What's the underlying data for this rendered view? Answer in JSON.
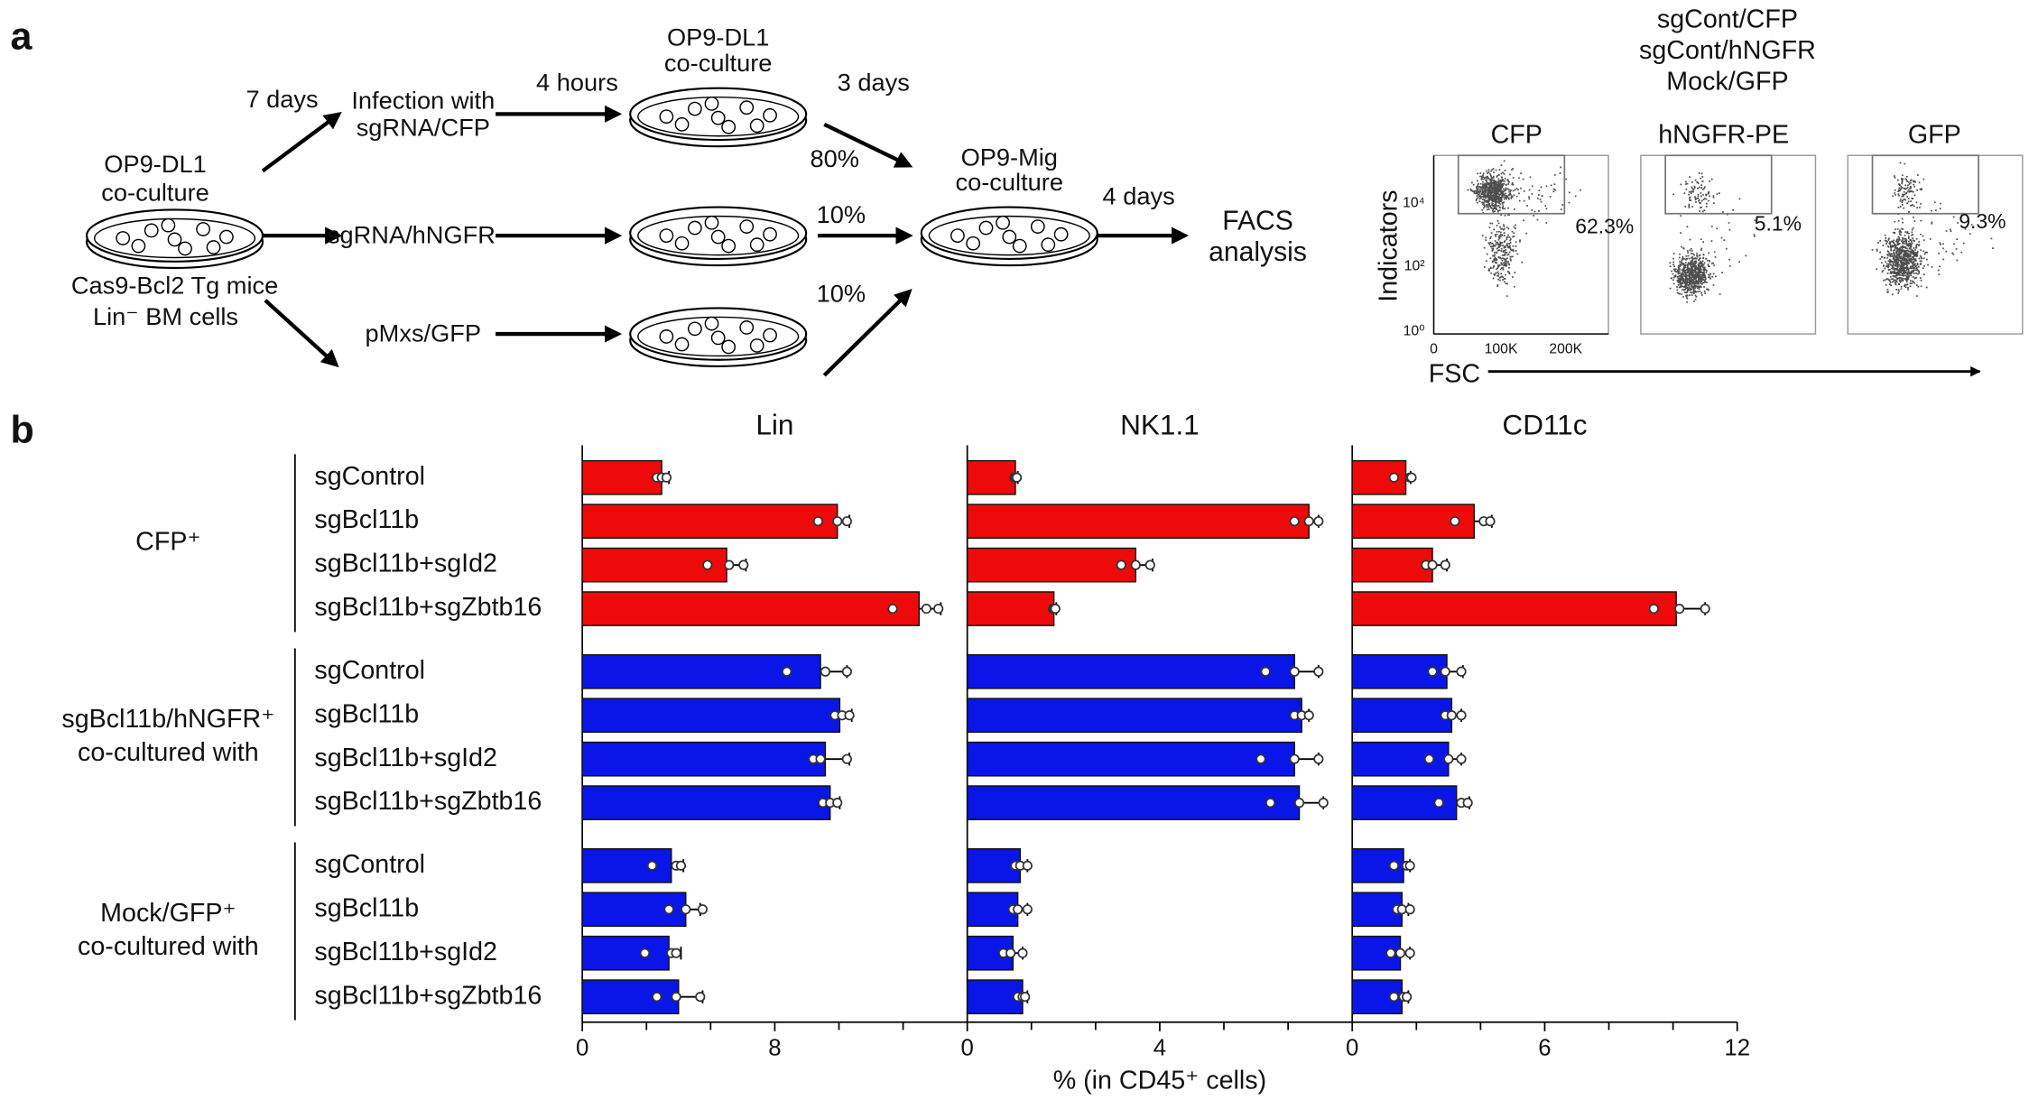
{
  "panel_a": {
    "label": "a",
    "culture_1": [
      "OP9-DL1",
      "co-culture"
    ],
    "mice": "Cas9-Bcl2 Tg mice",
    "cells": "Lin⁻ BM cells",
    "time_1": "7 days",
    "infection_cfp": [
      "Infection with",
      "sgRNA/CFP"
    ],
    "infection_hngfr": "sgRNA/hNGFR",
    "infection_gfp": "pMxs/GFP",
    "time_2": "4 hours",
    "culture_2": [
      "OP9-DL1",
      "co-culture"
    ],
    "time_3": "3 days",
    "fractions": [
      "80%",
      "10%",
      "10%"
    ],
    "culture_3": [
      "OP9-Mig",
      "co-culture"
    ],
    "time_4": "4 days",
    "readout": [
      "FACS",
      "analysis"
    ],
    "facs": {
      "legend": [
        "sgCont/CFP",
        "sgCont/hNGFR",
        "Mock/GFP"
      ],
      "plots": [
        {
          "title": "CFP",
          "gate": "62.3%"
        },
        {
          "title": "hNGFR-PE",
          "gate": "5.1%"
        },
        {
          "title": "GFP",
          "gate": "9.3%"
        }
      ],
      "ylabel": "Indicators",
      "yticks": [
        "10⁰",
        "10²",
        "10⁴"
      ],
      "xticks": [
        "0",
        "100K",
        "200K"
      ],
      "xlabel": "FSC"
    }
  },
  "panel_b_label": "b",
  "chart_data": {
    "type": "bar",
    "orientation": "horizontal",
    "xlabel": "% (in CD45⁺ cells)",
    "groups": [
      {
        "name": [
          "CFP⁺"
        ],
        "color": "#ee0a0a",
        "categories": [
          "sgControl",
          "sgBcl11b",
          "sgBcl11b+sgId2",
          "sgBcl11b+sgZbtb16"
        ]
      },
      {
        "name": [
          "sgBcl11b/hNGFR⁺",
          "co-cultured with"
        ],
        "color": "#0a16e8",
        "categories": [
          "sgControl",
          "sgBcl11b",
          "sgBcl11b+sgId2",
          "sgBcl11b+sgZbtb16"
        ]
      },
      {
        "name": [
          "Mock/GFP⁺",
          "co-cultured with"
        ],
        "color": "#0a16e8",
        "categories": [
          "sgControl",
          "sgBcl11b",
          "sgBcl11b+sgId2",
          "sgBcl11b+sgZbtb16"
        ]
      }
    ],
    "series": [
      {
        "name": "Lin",
        "xlim": [
          0,
          16
        ],
        "xticks": [
          0,
          8
        ],
        "xminor_ticks": [
          2.667,
          5.333,
          10.667,
          13.333
        ],
        "values": [
          3.3,
          10.6,
          6.0,
          14.0,
          9.9,
          10.7,
          10.1,
          10.3,
          3.7,
          4.3,
          3.6,
          4.0
        ],
        "errors": [
          0.3,
          0.5,
          0.8,
          0.9,
          1.1,
          0.5,
          1.0,
          0.4,
          0.5,
          0.6,
          0.5,
          1.0
        ],
        "points": [
          [
            3.1,
            3.3,
            3.5
          ],
          [
            9.8,
            10.6,
            11.0
          ],
          [
            5.2,
            6.1,
            6.7
          ],
          [
            12.9,
            14.3,
            14.8
          ],
          [
            8.5,
            10.1,
            11.0
          ],
          [
            10.5,
            10.8,
            11.1
          ],
          [
            9.6,
            9.9,
            11.0
          ],
          [
            10.0,
            10.3,
            10.6
          ],
          [
            2.9,
            3.9,
            4.1
          ],
          [
            3.6,
            4.3,
            5.0
          ],
          [
            2.6,
            3.7,
            3.9
          ],
          [
            3.1,
            3.9,
            4.9
          ]
        ]
      },
      {
        "name": "NK1.1",
        "xlim": [
          0,
          8
        ],
        "xticks": [
          0,
          4
        ],
        "xminor_ticks": [
          1.333,
          2.667,
          5.333,
          6.667
        ],
        "values": [
          1.0,
          7.1,
          3.5,
          1.8,
          6.8,
          6.95,
          6.8,
          6.9,
          1.1,
          1.05,
          0.95,
          1.15
        ],
        "errors": [
          0.05,
          0.2,
          0.35,
          0.05,
          0.5,
          0.15,
          0.5,
          0.5,
          0.15,
          0.2,
          0.2,
          0.1
        ],
        "points": [
          [
            0.98,
            1.0,
            1.03
          ],
          [
            6.8,
            7.1,
            7.3
          ],
          [
            3.2,
            3.5,
            3.8
          ],
          [
            1.78,
            1.8,
            1.83
          ],
          [
            6.2,
            6.8,
            7.3
          ],
          [
            6.8,
            6.95,
            7.1
          ],
          [
            6.1,
            6.8,
            7.3
          ],
          [
            6.3,
            6.9,
            7.4
          ],
          [
            1.0,
            1.1,
            1.25
          ],
          [
            0.95,
            1.05,
            1.25
          ],
          [
            0.75,
            0.9,
            1.15
          ],
          [
            1.05,
            1.15,
            1.2
          ]
        ]
      },
      {
        "name": "CD11c",
        "xlim": [
          0,
          12
        ],
        "xticks": [
          0,
          6,
          12
        ],
        "xminor_ticks": [
          2,
          4,
          8,
          10
        ],
        "values": [
          1.67,
          3.8,
          2.5,
          10.1,
          2.95,
          3.1,
          3.0,
          3.25,
          1.6,
          1.55,
          1.5,
          1.55
        ],
        "errors": [
          0.15,
          0.55,
          0.45,
          0.9,
          0.5,
          0.3,
          0.4,
          0.4,
          0.2,
          0.2,
          0.3,
          0.2
        ],
        "points": [
          [
            1.3,
            1.8,
            1.85
          ],
          [
            3.2,
            4.1,
            4.3
          ],
          [
            2.3,
            2.5,
            2.9
          ],
          [
            9.4,
            10.2,
            11.0
          ],
          [
            2.5,
            2.9,
            3.4
          ],
          [
            2.9,
            3.1,
            3.4
          ],
          [
            2.4,
            3.0,
            3.4
          ],
          [
            2.7,
            3.4,
            3.6
          ],
          [
            1.3,
            1.7,
            1.8
          ],
          [
            1.4,
            1.55,
            1.8
          ],
          [
            1.2,
            1.5,
            1.8
          ],
          [
            1.3,
            1.6,
            1.7
          ]
        ]
      }
    ]
  }
}
